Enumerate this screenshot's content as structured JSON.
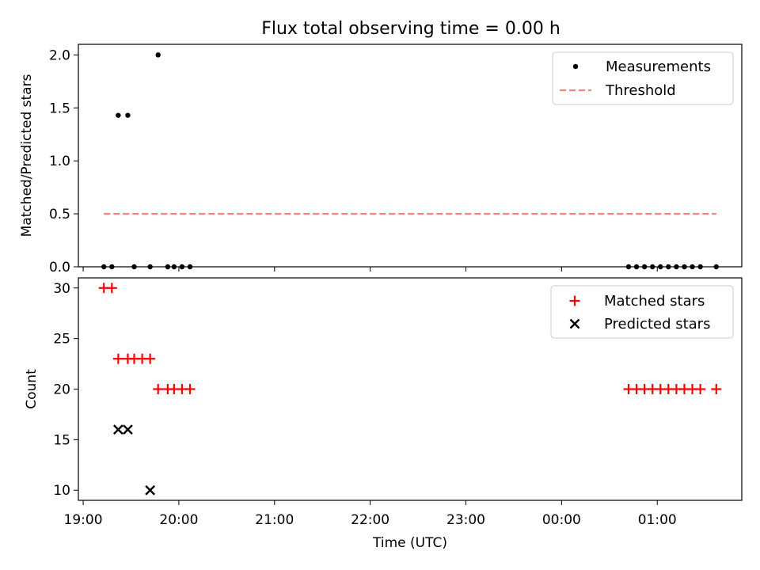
{
  "title": "Flux total observing time = 0.00 h",
  "colors": {
    "measurement": "#000000",
    "threshold": "#ff7f7f",
    "matched": "#ff0000",
    "predicted": "#000000"
  },
  "chart_data": [
    {
      "type": "scatter",
      "ylabel": "Matched/Predicted stars",
      "ylim": [
        0,
        2.1
      ],
      "yticks": [
        0.0,
        0.5,
        1.0,
        1.5,
        2.0
      ],
      "ytick_labels": [
        "0.0",
        "0.5",
        "1.0",
        "1.5",
        "2.0"
      ],
      "legend": {
        "placement": "top-right",
        "entries": [
          "Measurements",
          "Threshold"
        ]
      },
      "series": [
        {
          "name": "Measurements",
          "marker": "dot",
          "x": [
            "19:13",
            "19:18",
            "19:22",
            "19:28",
            "19:32",
            "19:42",
            "19:47",
            "19:53",
            "19:57",
            "20:02",
            "20:07",
            "00:42",
            "00:47",
            "00:52",
            "00:57",
            "01:02",
            "01:07",
            "01:12",
            "01:17",
            "01:22",
            "01:27",
            "01:37"
          ],
          "y": [
            0,
            0,
            1.43,
            1.43,
            0,
            0,
            2.0,
            0,
            0,
            0,
            0,
            0,
            0,
            0,
            0,
            0,
            0,
            0,
            0,
            0,
            0,
            0
          ]
        },
        {
          "name": "Threshold",
          "style": "dashed",
          "x": [
            "19:13",
            "01:37"
          ],
          "y": [
            0.5,
            0.5
          ]
        }
      ]
    },
    {
      "type": "scatter",
      "xlabel": "Time (UTC)",
      "ylabel": "Count",
      "ylim": [
        9,
        31
      ],
      "yticks": [
        10,
        15,
        20,
        25,
        30
      ],
      "xticks": [
        "19:00",
        "20:00",
        "21:00",
        "22:00",
        "23:00",
        "00:00",
        "01:00"
      ],
      "xlim": [
        "18:57",
        "01:53"
      ],
      "legend": {
        "placement": "top-right",
        "entries": [
          "Matched stars",
          "Predicted stars"
        ]
      },
      "series": [
        {
          "name": "Matched stars",
          "marker": "plus",
          "x": [
            "19:13",
            "19:18",
            "19:22",
            "19:28",
            "19:32",
            "19:37",
            "19:42",
            "19:47",
            "19:53",
            "19:57",
            "20:02",
            "20:07",
            "00:42",
            "00:47",
            "00:52",
            "00:57",
            "01:02",
            "01:07",
            "01:12",
            "01:17",
            "01:22",
            "01:27",
            "01:37"
          ],
          "y": [
            30,
            30,
            23,
            23,
            23,
            23,
            23,
            20,
            20,
            20,
            20,
            20,
            20,
            20,
            20,
            20,
            20,
            20,
            20,
            20,
            20,
            20,
            20
          ]
        },
        {
          "name": "Predicted stars",
          "marker": "x",
          "x": [
            "19:22",
            "19:28",
            "19:42"
          ],
          "y": [
            16,
            16,
            10
          ]
        }
      ]
    }
  ]
}
